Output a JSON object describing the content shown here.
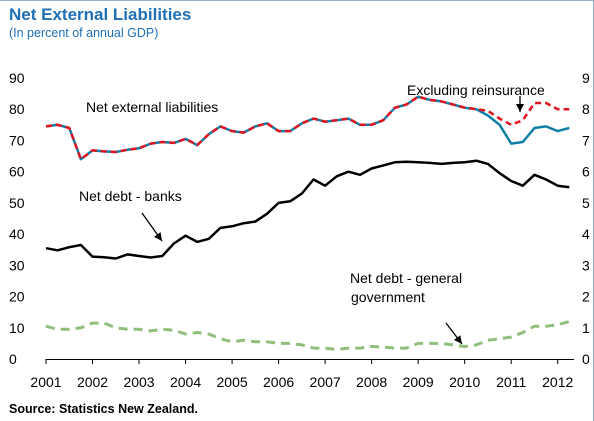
{
  "title": "Net External Liabilities",
  "subtitle": "(In percent of annual GDP)",
  "source": "Source: Statistics New Zealand.",
  "colors": {
    "title": "#1f6fb5",
    "net_external_liabilities": "#0f7fa8",
    "excluding_reinsurance": "#e0141e",
    "net_debt_banks": "#000000",
    "net_debt_general_government": "#8fbf7a"
  },
  "chart_data": {
    "type": "line",
    "title": "Net External Liabilities",
    "subtitle": "(In percent of annual GDP)",
    "xlabel": "",
    "ylabel": "",
    "xlim": [
      2001,
      2012.35
    ],
    "ylim": [
      0,
      90
    ],
    "x_ticks": [
      "2001",
      "2002",
      "2003",
      "2004",
      "2005",
      "2006",
      "2007",
      "2008",
      "2009",
      "2010",
      "2011",
      "2012"
    ],
    "y_ticks": [
      "0",
      "10",
      "20",
      "30",
      "40",
      "50",
      "60",
      "70",
      "80",
      "90"
    ],
    "right_axis_ticks": [
      "0",
      "1",
      "2",
      "3",
      "4",
      "5",
      "6",
      "7",
      "8",
      "9"
    ],
    "grid": false,
    "legend": "none",
    "x": [
      2001.0,
      2001.25,
      2001.5,
      2001.75,
      2002.0,
      2002.25,
      2002.5,
      2002.75,
      2003.0,
      2003.25,
      2003.5,
      2003.75,
      2004.0,
      2004.25,
      2004.5,
      2004.75,
      2005.0,
      2005.25,
      2005.5,
      2005.75,
      2006.0,
      2006.25,
      2006.5,
      2006.75,
      2007.0,
      2007.25,
      2007.5,
      2007.75,
      2008.0,
      2008.25,
      2008.5,
      2008.75,
      2009.0,
      2009.25,
      2009.5,
      2009.75,
      2010.0,
      2010.25,
      2010.5,
      2010.75,
      2011.0,
      2011.25,
      2011.5,
      2011.75,
      2012.0,
      2012.25
    ],
    "series": [
      {
        "name": "Net external liabilities",
        "key": "net_external_liabilities",
        "style": "solid",
        "values": [
          74.5,
          75.0,
          74.0,
          64.0,
          66.8,
          66.5,
          66.3,
          67.0,
          67.5,
          69.0,
          69.5,
          69.2,
          70.5,
          68.5,
          72.0,
          74.5,
          73.0,
          72.5,
          74.5,
          75.5,
          73.0,
          73.0,
          75.5,
          77.0,
          76.0,
          76.5,
          77.0,
          75.0,
          75.0,
          76.5,
          80.5,
          81.5,
          84.0,
          83.0,
          82.5,
          81.5,
          80.5,
          80.0,
          78.0,
          75.0,
          69.0,
          69.5,
          74.0,
          74.5,
          73.0,
          74.0
        ]
      },
      {
        "name": "Excluding reinsurance",
        "key": "excluding_reinsurance",
        "style": "dashed",
        "values": [
          74.5,
          75.0,
          74.0,
          64.0,
          66.8,
          66.5,
          66.3,
          67.0,
          67.5,
          69.0,
          69.5,
          69.2,
          70.5,
          68.5,
          72.0,
          74.5,
          73.0,
          72.5,
          74.5,
          75.5,
          73.0,
          73.0,
          75.5,
          77.0,
          76.0,
          76.5,
          77.0,
          75.0,
          75.0,
          76.5,
          80.5,
          81.5,
          84.0,
          83.0,
          82.5,
          81.5,
          80.5,
          80.0,
          79.5,
          77.0,
          75.0,
          76.5,
          82.0,
          82.0,
          80.0,
          80.0
        ]
      },
      {
        "name": "Net debt - banks",
        "key": "net_debt_banks",
        "style": "solid",
        "values": [
          35.5,
          34.8,
          35.8,
          36.5,
          32.8,
          32.6,
          32.2,
          33.5,
          33.0,
          32.5,
          33.0,
          37.0,
          39.5,
          37.5,
          38.5,
          42.0,
          42.5,
          43.5,
          44.0,
          46.5,
          50.0,
          50.5,
          53.0,
          57.5,
          55.5,
          58.5,
          60.0,
          59.0,
          61.0,
          62.0,
          63.0,
          63.2,
          63.0,
          62.8,
          62.5,
          62.8,
          63.0,
          63.5,
          62.5,
          59.5,
          57.0,
          55.5,
          59.0,
          57.5,
          55.5,
          55.0
        ]
      },
      {
        "name": "Net debt - general government",
        "key": "net_debt_general_government",
        "style": "dashed",
        "values": [
          10.5,
          9.5,
          9.5,
          10.0,
          11.5,
          11.5,
          10.0,
          9.5,
          9.5,
          9.0,
          9.5,
          9.2,
          8.0,
          8.5,
          8.0,
          6.5,
          5.5,
          6.0,
          5.5,
          5.5,
          5.0,
          5.0,
          4.5,
          3.5,
          3.5,
          3.0,
          3.5,
          3.5,
          4.0,
          3.8,
          3.5,
          3.5,
          5.0,
          5.0,
          5.0,
          4.5,
          4.0,
          4.5,
          6.0,
          6.5,
          7.0,
          8.5,
          10.5,
          10.5,
          11.0,
          12.0
        ]
      }
    ],
    "annotations": [
      {
        "text": "Excluding reinsurance",
        "arrow_to": [
          2011.2,
          76.5
        ]
      },
      {
        "text": "Net external liabilities",
        "arrow_to": null
      },
      {
        "text": "Net debt - banks",
        "arrow_to": [
          2003.4,
          36.0
        ]
      },
      {
        "text": "Net debt - general",
        "arrow_to": null
      },
      {
        "text": "government",
        "arrow_to": [
          2010.2,
          4.5
        ]
      }
    ]
  }
}
